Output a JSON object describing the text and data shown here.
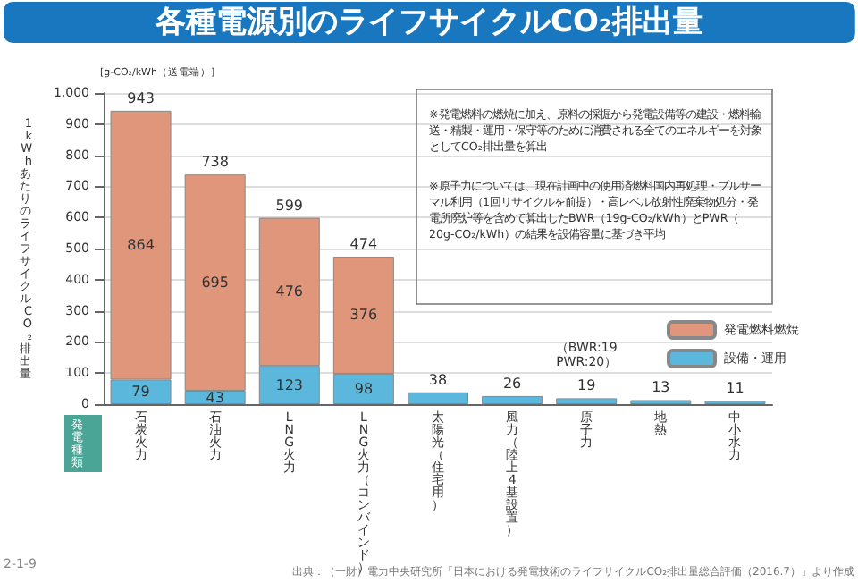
{
  "chart_data": {
    "type": "bar",
    "stacked": true,
    "title": "各種電源別のライフサイクルCO₂排出量",
    "ylabel": "1kWhあたりのライフサイクルCO₂排出量",
    "categories": [
      "石炭火力",
      "石油火力",
      "LNG火力",
      "LNG火力（コンバインド）",
      "太陽光（住宅用）",
      "風力（陸上4基設置）",
      "原子力",
      "地熱",
      "中小水力"
    ],
    "series": [
      {
        "name": "設備・運用",
        "color": "#5bb8dc",
        "values": [
          79,
          43,
          123,
          98,
          38,
          26,
          19,
          13,
          11
        ],
        "value_labels": [
          "79",
          "43",
          "123",
          "98",
          null,
          null,
          null,
          null,
          null
        ]
      },
      {
        "name": "発電燃料燃焼",
        "color": "#e0967a",
        "values": [
          864,
          695,
          476,
          376,
          null,
          null,
          null,
          null,
          null
        ],
        "value_labels": [
          "864",
          "695",
          "476",
          "376",
          null,
          null,
          null,
          null,
          null
        ]
      }
    ],
    "totals": [
      "943",
      "738",
      "599",
      "474",
      "38",
      "26",
      "19",
      "13",
      "11"
    ],
    "ylim": [
      0,
      1000
    ],
    "yticks": [
      0,
      100,
      200,
      300,
      400,
      500,
      600,
      700,
      800,
      900,
      {
        "value": 1000,
        "label": "1,000"
      }
    ],
    "grid": "y",
    "legend": "right",
    "annotations": [
      "[g-CO₂/kWh（送電端）]",
      "※発電燃料の燃焼に加え、原料の採掘から発電設備等の建設・燃料輸送・精製・運用・保守等のために消費される全てのエネルギーを対象としてCO₂排出量を算出",
      "※原子力については、現在計画中の使用済燃料国内再処理・プルサーマル利用（1回リサイクルを前提）・高レベル放射性廃棄物処分・発電所廃炉等を含めて算出したBWR（19g-CO₂/kWh）とPWR（20g-CO₂/kWh）の結果を設備容量に基づき平均",
      {
        "text": "（BWR:19\nPWR:20）",
        "x": "原子力",
        "y": 19
      },
      "発電種類",
      "2-1-9",
      "出典：（一財）電力中央研究所「日本における発電技術のライフサイクルCO₂排出量総合評価（2016.7）」より作成"
    ]
  }
}
